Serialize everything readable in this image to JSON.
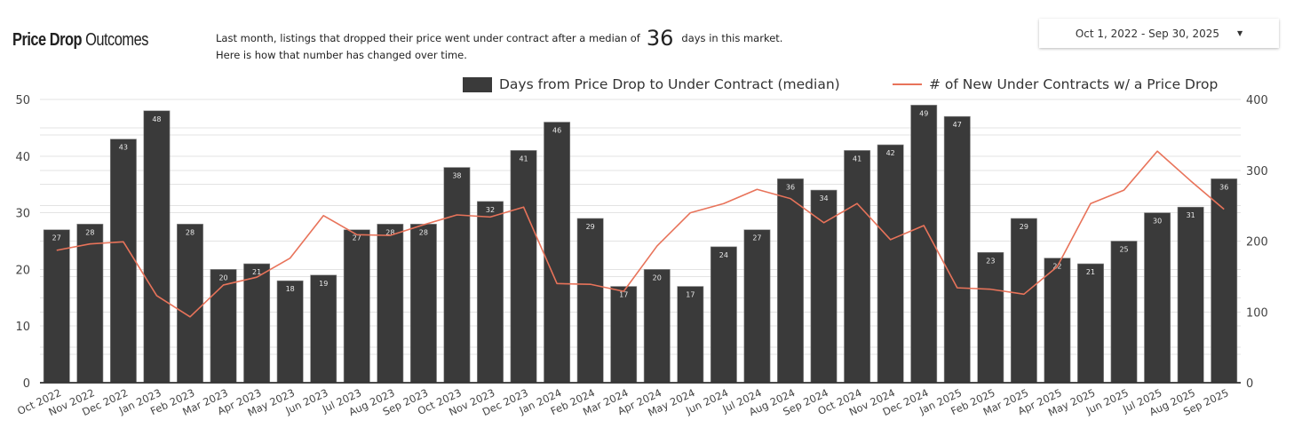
{
  "header": {
    "title_bold": "Price Drop",
    "title_regular": "Outcomes",
    "subtitle_line1_pre": "Last month,  listings that dropped their price went under contract after a median of",
    "subtitle_value": "36",
    "subtitle_line1_post": "days in this market.",
    "subtitle_line2": "Here is how that number has changed over time."
  },
  "date_range": {
    "label": "Oct 1, 2022 - Sep 30, 2025",
    "caret_icon": "caret-down-icon"
  },
  "colors": {
    "bar": "#3a3a3a",
    "line": "#e8735a",
    "grid": "#e3e3e3",
    "axis": "#333333"
  },
  "chart_data": {
    "type": "bar",
    "title": "Price Drop Outcomes",
    "xlabel": "",
    "ylabel": "Days from Price Drop to Under Contract (median)",
    "y2label": "# of New Under Contracts w/ a Price Drop",
    "ylim": [
      0,
      50
    ],
    "y2lim": [
      0,
      400
    ],
    "yticks": [
      0,
      10,
      20,
      30,
      40,
      50
    ],
    "y2ticks": [
      0,
      100,
      200,
      300,
      400
    ],
    "grid": true,
    "legend_position": "top-right",
    "categories": [
      "Oct 2022",
      "Nov 2022",
      "Dec 2022",
      "Jan 2023",
      "Feb 2023",
      "Mar 2023",
      "Apr 2023",
      "May 2023",
      "Jun 2023",
      "Jul 2023",
      "Aug 2023",
      "Sep 2023",
      "Oct 2023",
      "Nov 2023",
      "Dec 2023",
      "Jan 2024",
      "Feb 2024",
      "Mar 2024",
      "Apr 2024",
      "May 2024",
      "Jun 2024",
      "Jul 2024",
      "Aug 2024",
      "Sep 2024",
      "Oct 2024",
      "Nov 2024",
      "Dec 2024",
      "Jan 2025",
      "Feb 2025",
      "Mar 2025",
      "Apr 2025",
      "May 2025",
      "Jun 2025",
      "Jul 2025",
      "Aug 2025",
      "Sep 2025"
    ],
    "series": [
      {
        "name": "Days from Price Drop to Under Contract (median)",
        "type": "bar",
        "axis": "left",
        "values": [
          27,
          28,
          43,
          48,
          28,
          20,
          21,
          18,
          19,
          27,
          28,
          28,
          38,
          32,
          41,
          46,
          29,
          17,
          20,
          17,
          24,
          27,
          36,
          34,
          41,
          42,
          49,
          47,
          23,
          29,
          22,
          21,
          25,
          30,
          31,
          36
        ]
      },
      {
        "name": "# of New Under Contracts w/ a Price Drop",
        "type": "line",
        "axis": "right",
        "values": [
          187,
          196,
          199,
          123,
          93,
          138,
          149,
          176,
          236,
          209,
          208,
          223,
          237,
          234,
          248,
          140,
          139,
          129,
          193,
          240,
          253,
          273,
          260,
          226,
          253,
          202,
          222,
          134,
          132,
          125,
          164,
          253,
          272,
          327,
          285,
          245
        ]
      }
    ]
  }
}
